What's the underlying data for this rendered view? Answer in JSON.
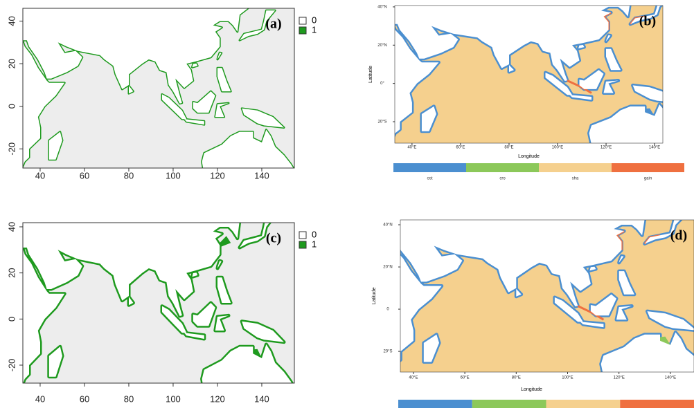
{
  "panels": [
    {
      "label": "(a)",
      "kind": "binary",
      "xlim": [
        32.2,
        154.7
      ],
      "ylim": [
        -29,
        46
      ],
      "xticks": [
        40,
        60,
        80,
        100,
        120,
        140
      ],
      "yticks": [
        -20,
        0,
        20,
        40
      ],
      "ocean": "#ededed",
      "coast": "#1e9a1e",
      "legend": [
        {
          "label": "0",
          "color": "#ffffff"
        },
        {
          "label": "1",
          "color": "#1e9a1e"
        }
      ]
    },
    {
      "label": "(b)",
      "kind": "change",
      "xlim": [
        32.9,
        143.4
      ],
      "ylim": [
        -31.2,
        40.7
      ],
      "xticks": [
        {
          "value": 40,
          "label": "40°E"
        },
        {
          "value": 60,
          "label": "60°E"
        },
        {
          "value": 80,
          "label": "80°E"
        },
        {
          "value": 100,
          "label": "100°E"
        },
        {
          "value": 120,
          "label": "120°E"
        },
        {
          "value": 140,
          "label": "140°E"
        }
      ],
      "yticks": [
        {
          "value": -20,
          "label": "20°S"
        },
        {
          "value": 0,
          "label": "0°"
        },
        {
          "value": 20,
          "label": "20°N"
        },
        {
          "value": 40,
          "label": "40°N"
        }
      ],
      "xlabel": "Longitude",
      "ylabel": "Latitude",
      "ocean": "#f5d08e",
      "coast": "#4b8fd0",
      "colorbar": [
        {
          "label": "ost",
          "color": "#4b8fd0"
        },
        {
          "label": "cro",
          "color": "#8cc85a"
        },
        {
          "label": "sha",
          "color": "#f5d08e"
        },
        {
          "label": "gain",
          "color": "#ef7040"
        }
      ]
    },
    {
      "label": "(c)",
      "kind": "binary",
      "xlim": [
        32.2,
        154.7
      ],
      "ylim": [
        -27.8,
        41.8
      ],
      "xticks": [
        40,
        60,
        80,
        100,
        120,
        140
      ],
      "yticks": [
        -20,
        0,
        20,
        40
      ],
      "ocean": "#ededed",
      "coast": "#1e9a1e",
      "legend": [
        {
          "label": "0",
          "color": "#ffffff"
        },
        {
          "label": "1",
          "color": "#1e9a1e"
        }
      ]
    },
    {
      "label": "(d)",
      "kind": "change",
      "xlim": [
        34.9,
        149.2
      ],
      "ylim": [
        -29.8,
        42.3
      ],
      "xticks": [
        {
          "value": 40,
          "label": "40°E"
        },
        {
          "value": 60,
          "label": "60°E"
        },
        {
          "value": 80,
          "label": "80°E"
        },
        {
          "value": 100,
          "label": "100°E"
        },
        {
          "value": 120,
          "label": "120°E"
        },
        {
          "value": 140,
          "label": "140°E"
        }
      ],
      "yticks": [
        {
          "value": -20,
          "label": "20°S"
        },
        {
          "value": 0,
          "label": "0"
        },
        {
          "value": 20,
          "label": "20°N"
        },
        {
          "value": 40,
          "label": "40°N"
        }
      ],
      "xlabel": "Longitude",
      "ylabel": "Latitude",
      "ocean": "#f5d08e",
      "coast": "#4b8fd0",
      "colorbar": [
        {
          "color": "#4b8fd0"
        },
        {
          "color": "#8cc85a"
        },
        {
          "color": "#f5d08e"
        },
        {
          "color": "#ef7040"
        }
      ]
    }
  ]
}
